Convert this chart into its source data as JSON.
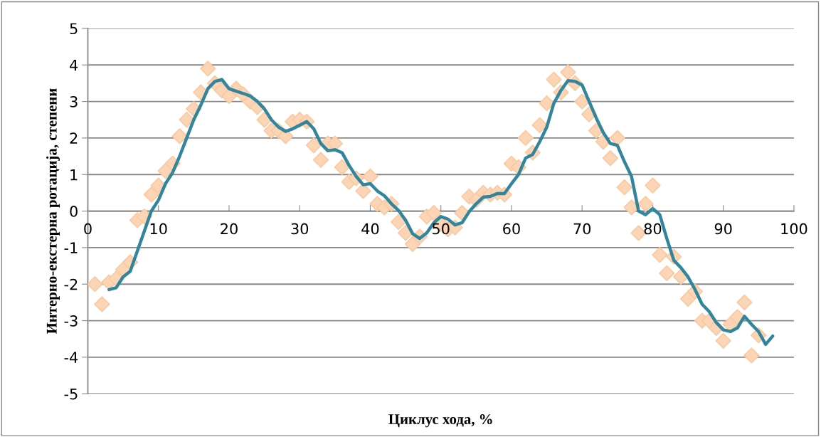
{
  "chart_data": {
    "type": "line",
    "xlabel": "Циклус хода, %",
    "ylabel": "Интерно-екстерна ротација, степени",
    "xlim": [
      0,
      100
    ],
    "xticks": [
      0,
      10,
      20,
      30,
      40,
      50,
      60,
      70,
      80,
      90,
      100
    ],
    "ylim": [
      -5,
      5
    ],
    "yticks": [
      -5,
      -4,
      -3,
      -2,
      -1,
      0,
      1,
      2,
      3,
      4,
      5
    ],
    "grid": "y",
    "legend": false,
    "series": [
      {
        "type": "scatter",
        "marker": "diamond",
        "color": "#fbd5b5",
        "x": [
          1,
          2,
          3,
          4,
          5,
          6,
          7,
          8,
          9,
          10,
          11,
          12,
          13,
          14,
          15,
          16,
          17,
          18,
          19,
          20,
          21,
          22,
          23,
          24,
          25,
          26,
          27,
          28,
          29,
          30,
          31,
          32,
          33,
          34,
          35,
          36,
          37,
          38,
          39,
          40,
          41,
          42,
          43,
          44,
          45,
          46,
          47,
          48,
          49,
          50,
          51,
          52,
          53,
          54,
          55,
          56,
          57,
          58,
          59,
          60,
          61,
          62,
          63,
          64,
          65,
          66,
          67,
          68,
          69,
          70,
          71,
          72,
          73,
          74,
          75,
          76,
          77,
          78,
          79,
          80,
          81,
          82,
          83,
          84,
          85,
          86,
          87,
          88,
          89,
          90,
          91,
          92,
          93,
          94,
          95
        ],
        "values": [
          -2.0,
          -2.55,
          -1.95,
          -1.85,
          -1.6,
          -1.4,
          -0.25,
          -0.15,
          0.45,
          0.7,
          1.1,
          1.3,
          2.05,
          2.5,
          2.8,
          3.25,
          3.9,
          3.5,
          3.3,
          3.15,
          3.35,
          3.2,
          3.0,
          2.85,
          2.5,
          2.2,
          2.2,
          2.05,
          2.45,
          2.5,
          2.45,
          1.8,
          1.4,
          1.85,
          1.85,
          1.2,
          0.8,
          0.9,
          0.55,
          0.95,
          0.2,
          0.1,
          0.2,
          -0.3,
          -0.6,
          -0.9,
          -0.7,
          -0.15,
          -0.05,
          -0.35,
          -0.5,
          -0.45,
          -0.05,
          0.4,
          0.3,
          0.5,
          0.45,
          0.5,
          0.45,
          1.3,
          1.2,
          2.0,
          1.6,
          2.35,
          2.95,
          3.6,
          3.25,
          3.8,
          3.5,
          3.0,
          2.65,
          2.2,
          1.9,
          1.45,
          2.0,
          0.65,
          0.1,
          -0.6,
          0.2,
          0.7,
          -1.2,
          -1.7,
          -1.25,
          -1.8,
          -2.4,
          -2.2,
          -3.0,
          -3.0,
          -3.2,
          -3.55,
          -3.1,
          -2.9,
          -2.5,
          -3.95,
          -3.4
        ]
      },
      {
        "type": "line",
        "marker": "none",
        "line_style": "solid",
        "color": "#31859c",
        "x": [
          3,
          4,
          5,
          6,
          7,
          8,
          9,
          10,
          11,
          12,
          13,
          14,
          15,
          16,
          17,
          18,
          19,
          20,
          21,
          22,
          23,
          24,
          25,
          26,
          27,
          28,
          29,
          30,
          31,
          32,
          33,
          34,
          35,
          36,
          37,
          38,
          39,
          40,
          41,
          42,
          43,
          44,
          45,
          46,
          47,
          48,
          49,
          50,
          51,
          52,
          53,
          54,
          55,
          56,
          57,
          58,
          59,
          60,
          61,
          62,
          63,
          64,
          65,
          66,
          67,
          68,
          69,
          70,
          71,
          72,
          73,
          74,
          75,
          76,
          77,
          78,
          79,
          80,
          81,
          82,
          83,
          84,
          85,
          86,
          87,
          88,
          89,
          90,
          91,
          92,
          93,
          94,
          95,
          96,
          97
        ],
        "values": [
          -2.15,
          -2.1,
          -1.8,
          -1.65,
          -1.1,
          -0.55,
          0.0,
          0.3,
          0.75,
          1.05,
          1.5,
          2.0,
          2.5,
          2.9,
          3.35,
          3.55,
          3.6,
          3.35,
          3.28,
          3.22,
          3.15,
          3.0,
          2.8,
          2.5,
          2.3,
          2.18,
          2.25,
          2.35,
          2.45,
          2.25,
          1.85,
          1.65,
          1.68,
          1.6,
          1.25,
          0.95,
          0.72,
          0.75,
          0.55,
          0.42,
          0.2,
          0.02,
          -0.25,
          -0.62,
          -0.75,
          -0.6,
          -0.32,
          -0.15,
          -0.22,
          -0.38,
          -0.32,
          -0.02,
          0.2,
          0.38,
          0.4,
          0.48,
          0.48,
          0.75,
          1.0,
          1.45,
          1.55,
          1.9,
          2.3,
          2.95,
          3.3,
          3.57,
          3.55,
          3.45,
          3.0,
          2.55,
          2.15,
          1.85,
          1.8,
          1.35,
          0.95,
          0.0,
          -0.1,
          0.07,
          -0.1,
          -0.75,
          -1.35,
          -1.55,
          -1.8,
          -2.15,
          -2.55,
          -2.75,
          -3.05,
          -3.25,
          -3.3,
          -3.2,
          -2.88,
          -3.1,
          -3.3,
          -3.65,
          -3.42
        ]
      }
    ]
  }
}
